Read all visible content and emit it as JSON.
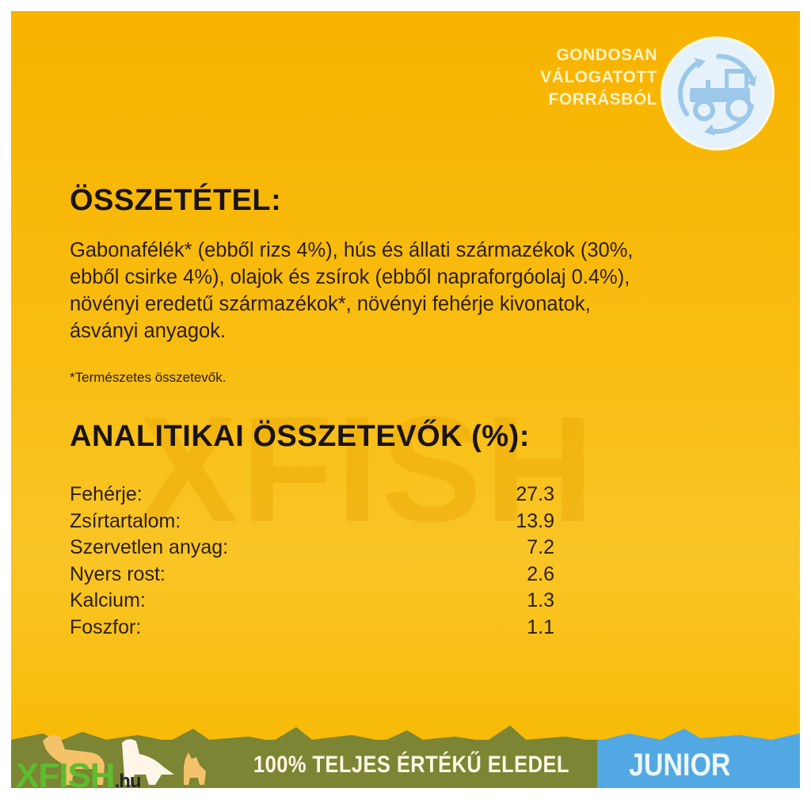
{
  "badge": {
    "lines": [
      "GONDOSAN",
      "VÁLOGATOTT",
      "FORRÁSBÓL"
    ],
    "icon": "tractor-recycle-icon"
  },
  "composition": {
    "title": "ÖSSZETÉTEL:",
    "lines": [
      "Gabonafélék* (ebből rizs 4%), hús és állati származékok (30%,",
      "ebből csirke 4%), olajok és zsírok (ebből napraforgóolaj 0.4%),",
      "növényi eredetű származékok*, növényi fehérje kivonatok,",
      "ásványi anyagok."
    ],
    "footnote": "*Természetes összetevők."
  },
  "analytics": {
    "title": "ANALITIKAI ÖSSZETEVŐK (%):",
    "rows": [
      {
        "label": "Fehérje:",
        "value": "27.3"
      },
      {
        "label": "Zsírtartalom:",
        "value": "13.9"
      },
      {
        "label": "Szervetlen anyag:",
        "value": "7.2"
      },
      {
        "label": "Nyers rost:",
        "value": "2.6"
      },
      {
        "label": "Kalcium:",
        "value": "1.3"
      },
      {
        "label": "Foszfor:",
        "value": "1.1"
      }
    ]
  },
  "banner": {
    "text": "100% TELJES ÉRTÉKŰ ELEDEL",
    "tag": "JUNIOR",
    "colors": {
      "green": "#7b8533",
      "blue": "#52a8e2",
      "background": "#f8b300"
    }
  },
  "watermark": {
    "text": "XFISH",
    "logo_main": "XFISH",
    "logo_suffix": ".hu"
  }
}
